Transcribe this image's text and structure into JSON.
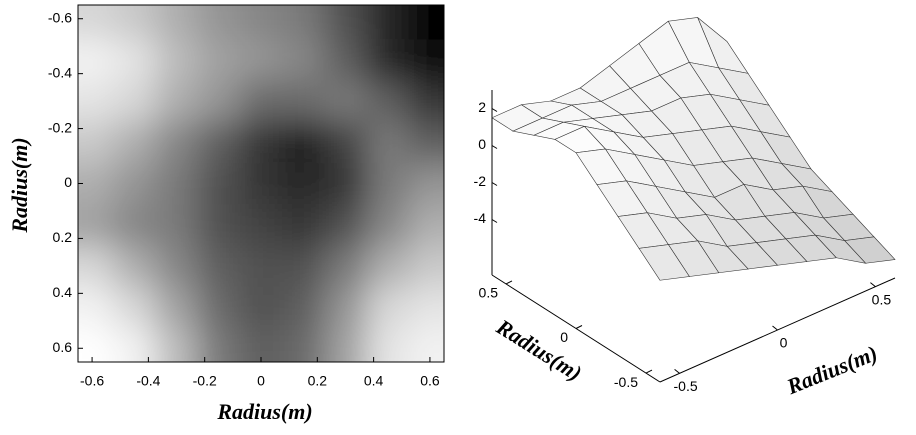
{
  "chart_data": [
    {
      "type": "heatmap",
      "x": [
        -0.6,
        -0.45,
        -0.3,
        -0.15,
        0,
        0.15,
        0.3,
        0.45,
        0.6
      ],
      "y": [
        -0.6,
        -0.45,
        -0.3,
        -0.15,
        0,
        0.15,
        0.3,
        0.45,
        0.6
      ],
      "z": [
        [
          1.5,
          1,
          0,
          -1,
          -1.5,
          -2,
          -3.5,
          -5,
          -6.5
        ],
        [
          2.5,
          2,
          0.5,
          -0.5,
          -1,
          -1.5,
          -3,
          -5,
          -6
        ],
        [
          2,
          1.5,
          0,
          -1,
          -2.5,
          -2.5,
          -2,
          -3,
          -4.5
        ],
        [
          1,
          0,
          -1.5,
          -3,
          -4.5,
          -5.5,
          -4,
          -2,
          -3
        ],
        [
          0,
          -1,
          -2,
          -3.5,
          -4.5,
          -5,
          -4.5,
          -2,
          -1
        ],
        [
          -0.5,
          -1.5,
          -2,
          -3.5,
          -4,
          -4.5,
          -3.5,
          -1.5,
          0
        ],
        [
          1.5,
          0,
          -1.5,
          -3,
          -3.5,
          -3.5,
          -2,
          0,
          1
        ],
        [
          2.5,
          1.5,
          -0.5,
          -2.5,
          -3.5,
          -3,
          -1,
          1.5,
          2
        ],
        [
          3,
          2.5,
          0.5,
          -2,
          -3,
          -2.5,
          -0.5,
          2,
          2.5
        ]
      ],
      "xlim": [
        -0.65,
        0.65
      ],
      "ylim": [
        0.65,
        -0.65
      ],
      "xticks": [
        -0.6,
        -0.4,
        -0.2,
        0,
        0.2,
        0.4,
        0.6
      ],
      "yticks": [
        -0.6,
        -0.4,
        -0.2,
        0,
        0.2,
        0.4,
        0.6
      ],
      "xlabel": "Radius(m)",
      "ylabel": "Radius(m)"
    },
    {
      "type": "surface3d",
      "x": [
        -0.6,
        -0.45,
        -0.3,
        -0.15,
        0,
        0.15,
        0.3,
        0.45,
        0.6
      ],
      "y": [
        -0.6,
        -0.45,
        -0.3,
        -0.15,
        0,
        0.15,
        0.3,
        0.45,
        0.6
      ],
      "z": [
        [
          -1.5,
          -2,
          -2.5,
          -3,
          -3.5,
          -4,
          -4.5,
          -5.5,
          -6
        ],
        [
          -0.5,
          -1,
          -1.5,
          -2.5,
          -3,
          -3.5,
          -4,
          -5,
          -5.5
        ],
        [
          0.5,
          0,
          -1,
          -1.5,
          -2.5,
          -3,
          -3.5,
          -4.5,
          -5
        ],
        [
          1.5,
          1,
          0,
          -1,
          -2,
          -2,
          -3,
          -3.5,
          -4.5
        ],
        [
          2.5,
          2,
          1,
          0,
          -1,
          -1.5,
          -2,
          -3,
          -4
        ],
        [
          2.5,
          2.5,
          1.5,
          0.5,
          0,
          -0.5,
          -1,
          -2,
          -3
        ],
        [
          2,
          2,
          1.5,
          1,
          0.5,
          0.5,
          0,
          -1,
          -2
        ],
        [
          1.5,
          1.5,
          1.5,
          1,
          1,
          1,
          1,
          0,
          -1
        ],
        [
          1.5,
          1.5,
          1,
          1,
          1.5,
          2,
          2.5,
          2,
          0
        ]
      ],
      "xlim": [
        -0.6,
        0.6
      ],
      "ylim": [
        -0.6,
        0.6
      ],
      "zlim": [
        -7,
        3
      ],
      "xticks": [
        -0.5,
        0,
        0.5
      ],
      "yticks": [
        -0.5,
        0,
        0.5
      ],
      "zticks": [
        -4,
        -2,
        0,
        2
      ],
      "xlabel": "Radius(m)",
      "ylabel": "Radius(m)"
    }
  ]
}
